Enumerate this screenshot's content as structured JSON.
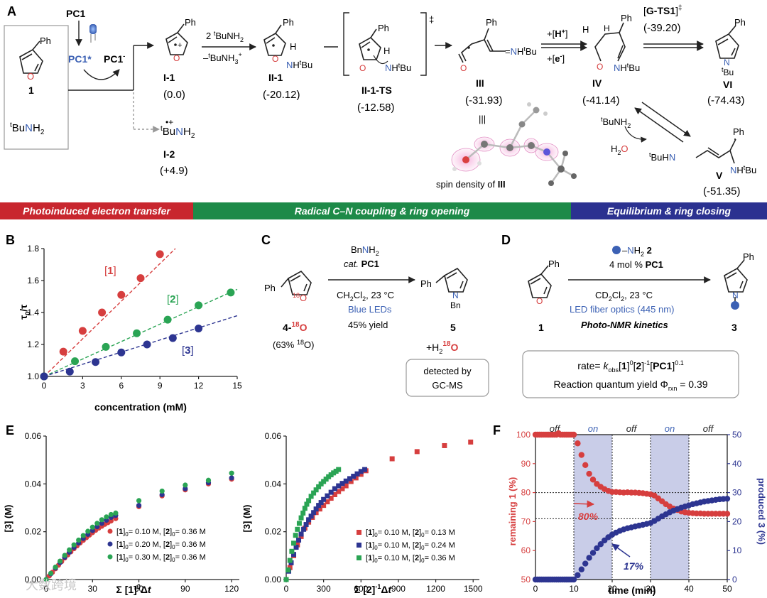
{
  "colors": {
    "red": "#d63e3e",
    "green": "#2aa454",
    "blue": "#2d3591",
    "banner_red": "#c8262e",
    "banner_green": "#1d8a48",
    "banner_blue": "#2b3190",
    "pc_blue": "#3c61b4",
    "shade": "#c9cde8"
  },
  "panel_a": {
    "letter": "A",
    "start": {
      "pc1": "PC1",
      "pc1_star": "PC1*",
      "pc1_anion": "PC1",
      "pc1_anion_sup": "-",
      "cmpd_num": "1",
      "amine": "BuNH",
      "amine_pre": "t",
      "amine_sub": "2",
      "ph": "Ph",
      "o": "O",
      "led_icon": "blue-led-icon"
    },
    "i1": {
      "label": "I-1",
      "energy": "(0.0)"
    },
    "i2": {
      "label": "I-2",
      "energy": "(+4.9)",
      "formula": "BuNH",
      "pre": "t",
      "sub": "2",
      "charge": "•+"
    },
    "step1": {
      "top": "2 BuNH",
      "top_pre": "t",
      "top_sub": "2",
      "bottom": "–BuNH",
      "bottom_pre": "t",
      "bottom_sub": "3",
      "bottom_sup": "+"
    },
    "ii1": {
      "label": "II-1",
      "energy": "(-20.12)",
      "h": "H",
      "nh": "NH",
      "bu": "Bu",
      "bu_pre": "t"
    },
    "ts": {
      "label": "II-1-TS",
      "energy": "(-12.58)",
      "dagger": "‡",
      "nh": "NH",
      "bu": "Bu",
      "h": "H"
    },
    "iii": {
      "label": "III",
      "energy": "(-31.93)",
      "nh": "=NH",
      "bu": "Bu",
      "o": "O",
      "equiv": "|||",
      "spin_caption": "spin density of",
      "spin_label": "III"
    },
    "step2": {
      "top": "+[H",
      "top_sup": "+",
      "top_end": "]",
      "bottom": "+[e",
      "bottom_sup": "-",
      "bottom_end": "]"
    },
    "iv": {
      "label": "IV",
      "energy": "(-41.14)",
      "h": "H",
      "o": "O",
      "nh": "NH",
      "bu": "Bu"
    },
    "gts": {
      "label": "G-TS1",
      "dagger": "‡",
      "energy": "(-39.20)"
    },
    "vi": {
      "label": "VI",
      "energy": "(-74.43)",
      "n": "N",
      "bu": "Bu"
    },
    "v": {
      "label": "V",
      "energy": "(-51.35)",
      "reagent": "BuNH",
      "reagent_pre": "t",
      "reagent_sub": "2",
      "water": "H",
      "water_sub": "2",
      "water_o": "O",
      "left": "BuHN",
      "nh": "NH",
      "bu": "Bu"
    }
  },
  "banners": [
    {
      "text": "Photoinduced electron transfer",
      "color": "#c8262e"
    },
    {
      "text": "Radical C–N coupling & ring opening",
      "color": "#1d8a48"
    },
    {
      "text": "Equilibrium & ring closing",
      "color": "#2b3190"
    }
  ],
  "panel_b": {
    "letter": "B",
    "chart_data": {
      "type": "scatter",
      "xlabel": "concentration (mM)",
      "ylabel": "τ",
      "ylabel_full": "τ0/τ",
      "xlim": [
        0,
        15
      ],
      "ylim": [
        1.0,
        1.8
      ],
      "xticks": [
        0,
        3,
        6,
        9,
        12,
        15
      ],
      "yticks": [
        1.0,
        1.2,
        1.4,
        1.6,
        1.8
      ],
      "ytick_labels": [
        "1.0",
        "1.2",
        "1.4",
        "1.6",
        "1.8"
      ],
      "series": [
        {
          "name": "[1]",
          "color": "#d63e3e",
          "x": [
            0,
            1.5,
            3,
            4.5,
            6,
            7.5,
            9
          ],
          "y": [
            1.0,
            1.155,
            1.285,
            1.4,
            1.51,
            1.615,
            1.765
          ],
          "fit_end": [
            10.2,
            1.8
          ]
        },
        {
          "name": "[2]",
          "color": "#2aa454",
          "x": [
            0,
            2.4,
            4.8,
            7.2,
            9.6,
            12,
            14.5
          ],
          "y": [
            1.0,
            1.095,
            1.185,
            1.27,
            1.355,
            1.445,
            1.525
          ],
          "fit_end": [
            15,
            1.545
          ]
        },
        {
          "name": "[3]",
          "color": "#2d3591",
          "x": [
            0,
            2,
            4,
            6,
            8,
            10,
            12
          ],
          "y": [
            1.0,
            1.03,
            1.09,
            1.15,
            1.2,
            1.24,
            1.3
          ],
          "fit_end": [
            15,
            1.38
          ]
        }
      ]
    }
  },
  "panel_c": {
    "letter": "C",
    "reagent": "BnNH",
    "reagent_sub": "2",
    "cat": "cat.",
    "pc1": "PC1",
    "solvent": "CH",
    "solvent_sub1": "2",
    "solvent_mid": "Cl",
    "solvent_sub2": "2",
    "solvent_end": ", 23 °C",
    "light": "Blue LEDs",
    "yield": "45% yield",
    "start_num": "4-",
    "start_sup": "18",
    "start_o": "O",
    "iso": "(63% ",
    "iso_sup": "18",
    "iso_end": "O)",
    "ph": "Ph",
    "o18": "18",
    "o": "O",
    "product_num": "5",
    "n": "N",
    "bn": "Bn",
    "water": "+H",
    "water_sub": "2",
    "water_sup": "18",
    "water_o": "O",
    "detected_1": "detected by",
    "detected_2": "GC-MS"
  },
  "panel_d": {
    "letter": "D",
    "reagent": "–NH",
    "reagent_sub": "2",
    "reagent_num": "2",
    "cat": "4 mol % ",
    "pc1": "PC1",
    "solvent": "CD",
    "solvent_sub1": "2",
    "solvent_mid": "Cl",
    "solvent_sub2": "2",
    "solvent_end": ", 23 °C",
    "light": "LED fiber optics (445 nm)",
    "method": "Photo-NMR kinetics",
    "start_num": "1",
    "product_num": "3",
    "ph": "Ph",
    "o": "O",
    "n": "N",
    "rate_pre": "rate= ",
    "k": "k",
    "k_sub": "obs",
    "b1": "[",
    "one": "1",
    "b2": "]",
    "exp0": "0",
    "b3": "[",
    "two": "2",
    "b4": "]",
    "expm1": "-1",
    "b5": "[",
    "pc": "PC1",
    "b6": "]",
    "exp01": "0.1",
    "qy": "Reaction quantum yield Φ",
    "qy_sub": "rxn",
    "qy_val": " = 0.39"
  },
  "panel_e": {
    "letter": "E",
    "chart_data": [
      {
        "type": "scatter",
        "ylabel": "[3] (M)",
        "xlabel": "Σ [1]⁰Δt",
        "xlim": [
          0,
          125
        ],
        "ylim": [
          0,
          0.06
        ],
        "xticks": [
          0,
          30,
          60,
          90,
          120
        ],
        "yticks": [
          0.0,
          0.02,
          0.04,
          0.06
        ],
        "ytick_labels": [
          "0.00",
          "0.02",
          "0.04",
          "0.06"
        ],
        "series": [
          {
            "name": "[1]0 = 0.10 M, [2]0 = 0.36 M",
            "color": "#d63e3e",
            "x": [
              0,
              2,
              4,
              6,
              8,
              10,
              12,
              14,
              16,
              18,
              20,
              22,
              24,
              26,
              28,
              30,
              32,
              34,
              36,
              38,
              40,
              42,
              45,
              60,
              75,
              90,
              105,
              120
            ],
            "y": [
              0,
              0.0015,
              0.003,
              0.0045,
              0.006,
              0.0075,
              0.009,
              0.0103,
              0.0116,
              0.0129,
              0.0141,
              0.0153,
              0.0164,
              0.0175,
              0.0186,
              0.0196,
              0.0206,
              0.0215,
              0.0223,
              0.0231,
              0.0238,
              0.0245,
              0.0255,
              0.0305,
              0.035,
              0.0375,
              0.04,
              0.042
            ]
          },
          {
            "name": "[1]0 = 0.20 M, [2]0 = 0.36 M",
            "color": "#2d3591",
            "x": [
              0,
              3,
              6,
              9,
              12,
              15,
              18,
              21,
              24,
              27,
              30,
              33,
              36,
              39,
              42,
              45,
              60,
              75,
              90,
              105,
              120
            ],
            "y": [
              0,
              0.0024,
              0.0048,
              0.0071,
              0.0093,
              0.0114,
              0.0134,
              0.0153,
              0.0172,
              0.0189,
              0.0205,
              0.0221,
              0.0235,
              0.0248,
              0.026,
              0.0268,
              0.031,
              0.0355,
              0.038,
              0.0405,
              0.0425
            ]
          },
          {
            "name": "[1]0 = 0.30 M, [2]0 = 0.36 M",
            "color": "#2aa454",
            "x": [
              0,
              3,
              6,
              9,
              12,
              15,
              18,
              21,
              24,
              27,
              30,
              33,
              36,
              39,
              42,
              45,
              60,
              75,
              90,
              105,
              120
            ],
            "y": [
              0,
              0.0026,
              0.0052,
              0.0077,
              0.0101,
              0.0124,
              0.0145,
              0.0165,
              0.0184,
              0.0202,
              0.0219,
              0.0235,
              0.025,
              0.0262,
              0.0272,
              0.0278,
              0.033,
              0.037,
              0.0395,
              0.0415,
              0.0445
            ]
          }
        ]
      },
      {
        "type": "scatter",
        "ylabel": "[3] (M)",
        "xlabel": "Σ [2]⁻¹Δt",
        "xlim": [
          0,
          1550
        ],
        "ylim": [
          0,
          0.06
        ],
        "xticks": [
          0,
          300,
          600,
          900,
          1200,
          1500
        ],
        "yticks": [
          0.0,
          0.02,
          0.04,
          0.06
        ],
        "ytick_labels": [
          "0.00",
          "0.02",
          "0.04",
          "0.06"
        ],
        "series": [
          {
            "name": "[1]0 = 0.10 M, [2]0 = 0.13 M",
            "color": "#d63e3e",
            "x": [
              0,
              30,
              60,
              90,
              120,
              150,
              180,
              210,
              240,
              270,
              300,
              330,
              360,
              390,
              420,
              450,
              480,
              520,
              560,
              600,
              640,
              850,
              1050,
              1270,
              1480
            ],
            "y": [
              0,
              0.005,
              0.01,
              0.0145,
              0.018,
              0.0215,
              0.024,
              0.026,
              0.028,
              0.0295,
              0.031,
              0.0325,
              0.034,
              0.0355,
              0.0368,
              0.038,
              0.0392,
              0.041,
              0.0425,
              0.044,
              0.0455,
              0.0505,
              0.0535,
              0.056,
              0.0575
            ]
          },
          {
            "name": "[1]0 = 0.10 M, [2]0 = 0.24 M",
            "color": "#2d3591",
            "x": [
              0,
              20,
              40,
              60,
              80,
              100,
              120,
              140,
              160,
              180,
              200,
              220,
              240,
              260,
              280,
              300,
              330,
              360,
              390,
              420,
              450,
              480,
              510,
              540,
              570,
              600,
              630
            ],
            "y": [
              0,
              0.0035,
              0.007,
              0.0105,
              0.0135,
              0.0165,
              0.019,
              0.021,
              0.023,
              0.025,
              0.0265,
              0.028,
              0.0295,
              0.031,
              0.0322,
              0.0335,
              0.035,
              0.0365,
              0.038,
              0.0392,
              0.0402,
              0.0412,
              0.0422,
              0.0432,
              0.0442,
              0.0452,
              0.046
            ]
          },
          {
            "name": "[1]0 = 0.10 M, [2]0 = 0.36 M",
            "color": "#2aa454",
            "x": [
              0,
              15,
              30,
              45,
              60,
              75,
              90,
              105,
              120,
              135,
              150,
              165,
              180,
              200,
              220,
              240,
              260,
              280,
              300,
              320,
              340,
              360,
              380,
              400,
              420
            ],
            "y": [
              0,
              0.004,
              0.008,
              0.0118,
              0.0152,
              0.0185,
              0.021,
              0.0235,
              0.0258,
              0.0278,
              0.0298,
              0.0315,
              0.033,
              0.0348,
              0.0362,
              0.0375,
              0.0388,
              0.04,
              0.041,
              0.042,
              0.043,
              0.0438,
              0.0446,
              0.0453,
              0.046
            ]
          }
        ]
      }
    ]
  },
  "panel_f": {
    "letter": "F",
    "chart_data": {
      "type": "scatter",
      "xlabel": "time (min)",
      "ylabel_left": "remaining 1 (%)",
      "ylabel_right": "produced 3 (%)",
      "xlim": [
        0,
        50
      ],
      "ylim_left": [
        50,
        100
      ],
      "ylim_right": [
        0,
        50
      ],
      "xticks": [
        0,
        10,
        20,
        30,
        40,
        50
      ],
      "yticks_left": [
        50,
        60,
        70,
        80,
        90,
        100
      ],
      "yticks_right": [
        0,
        10,
        20,
        30,
        40,
        50
      ],
      "light_periods": [
        {
          "label": "off",
          "from": 0,
          "to": 10,
          "lit": false
        },
        {
          "label": "on",
          "from": 10,
          "to": 20,
          "lit": true
        },
        {
          "label": "off",
          "from": 20,
          "to": 30,
          "lit": false
        },
        {
          "label": "on",
          "from": 30,
          "to": 40,
          "lit": true
        },
        {
          "label": "off",
          "from": 40,
          "to": 50,
          "lit": false
        }
      ],
      "annotations": [
        {
          "text": "80%",
          "color": "#d63e3e"
        },
        {
          "text": "17%",
          "color": "#2d3591"
        }
      ],
      "series": [
        {
          "name": "remaining 1",
          "color": "#d63e3e",
          "axis": "left",
          "x": [
            0,
            0.5,
            1,
            1.5,
            2,
            2.5,
            3,
            3.5,
            4,
            4.5,
            5,
            5.5,
            6,
            6.5,
            7,
            7.5,
            8,
            8.5,
            9,
            9.5,
            10,
            11,
            12,
            13,
            14,
            15,
            16,
            17,
            18,
            19,
            20,
            21,
            22,
            23,
            24,
            25,
            26,
            27,
            28,
            29,
            30,
            31,
            32,
            33,
            34,
            35,
            36,
            37,
            38,
            39,
            40,
            41,
            42,
            43,
            44,
            45,
            46,
            47,
            48,
            49,
            50
          ],
          "y": [
            100,
            100,
            100,
            100,
            100,
            100,
            100,
            100,
            100,
            100,
            100,
            100,
            100.5,
            100,
            100,
            100,
            100,
            100,
            100,
            100,
            100,
            97,
            93,
            89.5,
            86.5,
            84.5,
            83,
            82,
            81.2,
            80.6,
            80.2,
            80.2,
            80.1,
            80,
            80.1,
            80,
            80,
            79.9,
            79.8,
            79.6,
            79.4,
            79,
            78,
            77,
            76,
            75.2,
            74.5,
            74,
            73.5,
            73.2,
            73,
            72.9,
            72.8,
            72.8,
            72.7,
            72.7,
            72.7,
            72.7,
            72.7,
            72.7,
            72.7
          ]
        },
        {
          "name": "produced 3",
          "color": "#2d3591",
          "axis": "right",
          "x": [
            0,
            0.5,
            1,
            1.5,
            2,
            2.5,
            3,
            3.5,
            4,
            4.5,
            5,
            5.5,
            6,
            6.5,
            7,
            7.5,
            8,
            8.5,
            9,
            9.5,
            10,
            11,
            12,
            13,
            14,
            15,
            16,
            17,
            18,
            19,
            20,
            21,
            22,
            23,
            24,
            25,
            26,
            27,
            28,
            29,
            30,
            31,
            32,
            33,
            34,
            35,
            36,
            37,
            38,
            39,
            40,
            41,
            42,
            43,
            44,
            45,
            46,
            47,
            48,
            49,
            50
          ],
          "y": [
            0,
            0,
            0,
            0,
            0,
            0,
            0,
            0,
            0,
            0,
            0,
            0,
            0,
            0,
            0,
            0,
            0,
            0,
            0,
            0,
            0,
            1.5,
            3.5,
            5.5,
            7.5,
            9.2,
            10.8,
            12.2,
            13.5,
            14.6,
            15.5,
            16.2,
            16.8,
            17.3,
            17.7,
            18,
            18.3,
            18.6,
            18.9,
            19.2,
            19.5,
            20.2,
            21,
            21.8,
            22.5,
            23.2,
            23.8,
            24.3,
            24.8,
            25.2,
            25.6,
            26,
            26.3,
            26.6,
            26.9,
            27.1,
            27.3,
            27.5,
            27.7,
            27.8,
            27.9
          ]
        }
      ]
    }
  },
  "watermark": "大数跨境"
}
